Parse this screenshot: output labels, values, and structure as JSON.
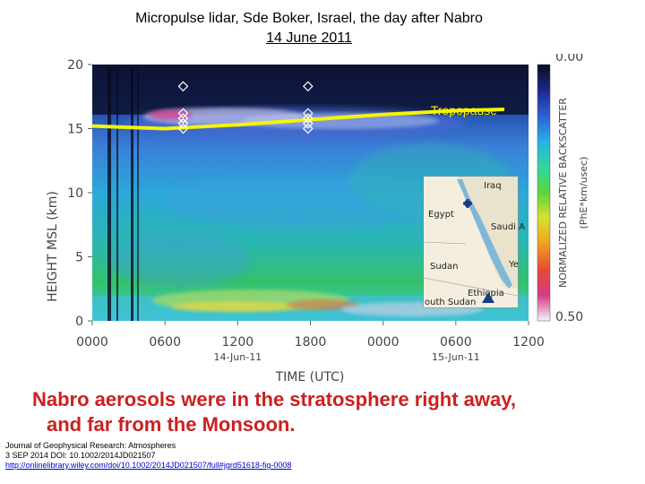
{
  "slide": {
    "title_line1": "Micropulse lidar, Sde Boker, Israel,  the day after Nabro",
    "title_line2": "14 June 2011",
    "headline_line1": "Nabro aerosols were in the stratosphere right away,",
    "headline_line2": "and far from the Monsoon.",
    "citation": {
      "journal": "Journal of Geophysical Research: Atmospheres",
      "date_doi": "3 SEP 2014 DOI: 10.1002/2014JD021507",
      "url": "http://onlinelibrary.wiley.com/doi/10.1002/2014JD021507/full#jgrd51618-fig-0008"
    }
  },
  "chart_data": {
    "type": "heatmap",
    "xlabel": "TIME (UTC)",
    "ylabel": "HEIGHT MSL (km)",
    "ylim": [
      0,
      20
    ],
    "x_ticks": [
      "0000",
      "0600",
      "1200",
      "1800",
      "0000",
      "0600",
      "1200"
    ],
    "x_tick_hours": [
      0,
      6,
      12,
      18,
      24,
      30,
      36
    ],
    "xlim_hours": [
      0,
      36
    ],
    "y_ticks": [
      0,
      5,
      10,
      15,
      20
    ],
    "date_labels": [
      {
        "text": "14-Jun-11",
        "hour": 12
      },
      {
        "text": "15-Jun-11",
        "hour": 30
      }
    ],
    "colorbar": {
      "label": "NORMALIZED RELATIVE BACKSCATTER",
      "units": "(PhE*km/usec)",
      "min_label": "0.00",
      "max_label": "0.50",
      "colors": [
        "#0a0a1e",
        "#1a2a8a",
        "#2e5fd6",
        "#28b0e8",
        "#30d5a0",
        "#5bd63a",
        "#d8e030",
        "#f0a020",
        "#e84a30",
        "#d63a8a",
        "#f4f4f4"
      ]
    },
    "tropopause": {
      "label": "Tropopause",
      "color": "#f5f500",
      "hours": [
        0,
        6,
        12,
        18,
        24,
        30,
        34
      ],
      "height_km": [
        15.2,
        15.0,
        15.3,
        15.7,
        16.1,
        16.4,
        16.5
      ]
    },
    "aerosol_markers_hour": [
      7.5,
      17.8
    ],
    "map_inset": {
      "labels": [
        "Iraq",
        "Egypt",
        "Saudi A",
        "Sudan",
        "Ye",
        "Ethiopia",
        "outh Sudan"
      ]
    }
  }
}
